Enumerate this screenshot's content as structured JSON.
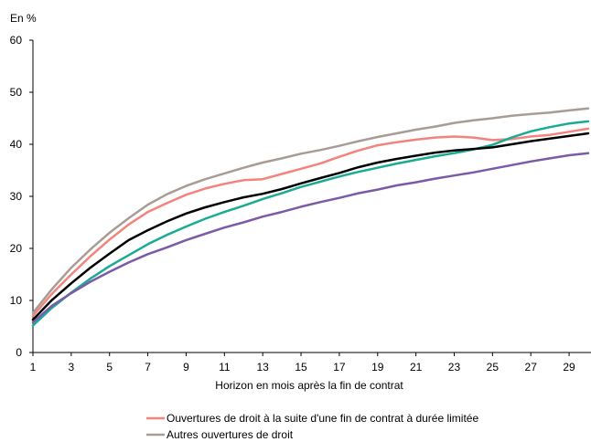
{
  "chart_data": {
    "type": "line",
    "ylabel": "En %",
    "xlabel": "Horizon en mois après la fin de contrat",
    "xlim": [
      1,
      30
    ],
    "ylim": [
      0,
      60
    ],
    "x_ticks": [
      1,
      3,
      5,
      7,
      9,
      11,
      13,
      15,
      17,
      19,
      21,
      23,
      25,
      27,
      29
    ],
    "y_ticks": [
      0,
      10,
      20,
      30,
      40,
      50,
      60
    ],
    "grid": false,
    "legend_placement": "bottom",
    "x": [
      1,
      2,
      3,
      4,
      5,
      6,
      7,
      8,
      9,
      10,
      11,
      12,
      13,
      14,
      15,
      16,
      17,
      18,
      19,
      20,
      21,
      22,
      23,
      24,
      25,
      26,
      27,
      28,
      29,
      30
    ],
    "series": [
      {
        "name": "Ouvertures de droit à la suite d'une fin de contrat à durée limitée",
        "color": "#f4837d",
        "values": [
          7.0,
          11.3,
          15.0,
          18.5,
          21.7,
          24.6,
          27.0,
          28.7,
          30.3,
          31.5,
          32.4,
          33.1,
          33.3,
          34.3,
          35.3,
          36.3,
          37.6,
          38.8,
          39.8,
          40.4,
          40.9,
          41.3,
          41.5,
          41.3,
          40.8,
          41.0,
          41.5,
          41.8,
          42.4,
          43.0
        ]
      },
      {
        "name": "Autres ouvertures de droit",
        "color": "#a89c95",
        "values": [
          7.6,
          12.2,
          16.3,
          19.8,
          23.0,
          25.8,
          28.4,
          30.4,
          32.0,
          33.3,
          34.4,
          35.5,
          36.5,
          37.3,
          38.2,
          38.9,
          39.7,
          40.6,
          41.4,
          42.1,
          42.8,
          43.4,
          44.1,
          44.6,
          45.0,
          45.5,
          45.8,
          46.1,
          46.5,
          46.9
        ]
      },
      {
        "name": "",
        "color": "#1aab93",
        "values": [
          5.2,
          8.6,
          11.5,
          14.2,
          16.6,
          18.7,
          20.8,
          22.6,
          24.2,
          25.7,
          27.0,
          28.2,
          29.5,
          30.6,
          31.8,
          32.8,
          33.8,
          34.7,
          35.5,
          36.3,
          37.0,
          37.7,
          38.3,
          39.0,
          39.9,
          41.3,
          42.5,
          43.3,
          44.0,
          44.4
        ]
      },
      {
        "name": "",
        "color": "#000000",
        "values": [
          6.3,
          10.1,
          13.3,
          16.3,
          19.0,
          21.6,
          23.5,
          25.2,
          26.7,
          27.9,
          28.9,
          29.8,
          30.5,
          31.4,
          32.5,
          33.5,
          34.5,
          35.6,
          36.5,
          37.2,
          37.8,
          38.4,
          38.8,
          39.1,
          39.4,
          40.0,
          40.6,
          41.1,
          41.6,
          42.1
        ]
      },
      {
        "name": "",
        "color": "#7b5aa6",
        "values": [
          5.8,
          9.0,
          11.4,
          13.6,
          15.5,
          17.3,
          18.9,
          20.2,
          21.6,
          22.8,
          24.0,
          25.0,
          26.1,
          27.0,
          28.0,
          28.9,
          29.7,
          30.6,
          31.3,
          32.1,
          32.7,
          33.4,
          34.0,
          34.6,
          35.3,
          36.0,
          36.7,
          37.3,
          37.9,
          38.3
        ]
      }
    ]
  }
}
